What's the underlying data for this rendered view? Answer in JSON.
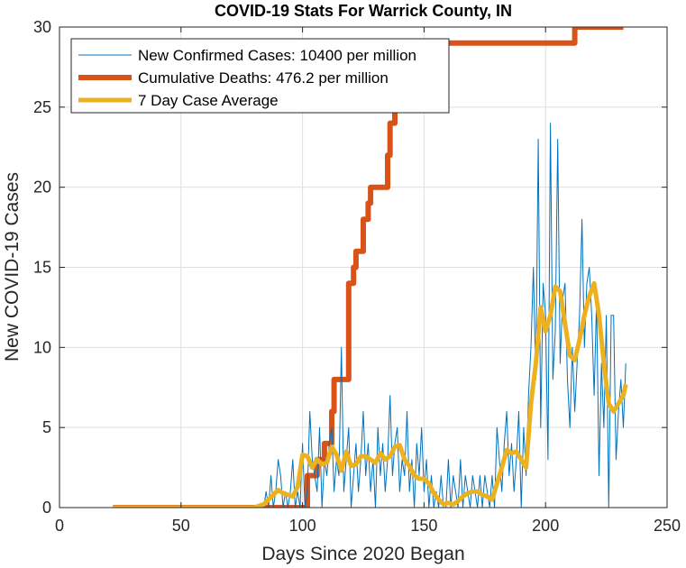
{
  "chart_data": {
    "type": "line",
    "title": "COVID-19 Stats For Warrick County, IN",
    "xlabel": "Days Since 2020 Began",
    "ylabel": "New COVID-19 Cases",
    "xlim": [
      0,
      250
    ],
    "ylim": [
      0,
      30
    ],
    "xticks": [
      0,
      50,
      100,
      150,
      200,
      250
    ],
    "yticks": [
      0,
      5,
      10,
      15,
      20,
      25,
      30
    ],
    "grid": true,
    "legend_position": "top-left",
    "series": [
      {
        "name": "New Confirmed Cases: 10400 per million",
        "color": "#0072BD",
        "style": "thin",
        "x": [
          22,
          40,
          60,
          80,
          84,
          85,
          86,
          87,
          88,
          89,
          90,
          91,
          92,
          93,
          94,
          95,
          96,
          97,
          98,
          99,
          100,
          101,
          102,
          103,
          104,
          105,
          106,
          107,
          108,
          109,
          110,
          111,
          112,
          113,
          114,
          115,
          116,
          117,
          118,
          119,
          120,
          121,
          122,
          123,
          124,
          125,
          126,
          127,
          128,
          129,
          130,
          131,
          132,
          133,
          134,
          135,
          136,
          137,
          138,
          139,
          140,
          141,
          142,
          143,
          144,
          145,
          146,
          147,
          148,
          149,
          150,
          151,
          152,
          153,
          154,
          155,
          156,
          157,
          158,
          159,
          160,
          161,
          162,
          163,
          164,
          165,
          166,
          167,
          168,
          169,
          170,
          171,
          172,
          173,
          174,
          175,
          176,
          177,
          178,
          179,
          180,
          181,
          182,
          183,
          184,
          185,
          186,
          187,
          188,
          189,
          190,
          191,
          192,
          193,
          194,
          195,
          196,
          197,
          198,
          199,
          200,
          201,
          202,
          203,
          204,
          205,
          206,
          207,
          208,
          209,
          210,
          211,
          212,
          213,
          214,
          215,
          216,
          217,
          218,
          219,
          220,
          221,
          222,
          223,
          224,
          225,
          226,
          227,
          228,
          229,
          230,
          231,
          232,
          233
        ],
        "y": [
          0,
          0,
          0,
          0,
          0,
          1,
          0,
          2,
          0,
          1,
          3,
          2,
          0,
          1,
          0,
          1,
          3,
          0,
          1,
          0,
          4,
          0,
          1,
          6,
          3,
          2,
          1,
          5,
          0,
          3,
          2,
          4,
          5,
          1,
          3,
          2,
          10,
          1,
          3,
          5,
          0,
          2,
          4,
          1,
          3,
          6,
          2,
          4,
          1,
          3,
          0,
          5,
          2,
          4,
          1,
          3,
          7,
          2,
          4,
          5,
          1,
          3,
          2,
          6,
          1,
          3,
          0,
          4,
          2,
          5,
          1,
          3,
          0,
          2,
          0,
          1,
          0,
          2,
          0,
          0,
          3,
          0,
          2,
          1,
          0,
          3,
          0,
          2,
          1,
          0,
          2,
          1,
          0,
          2,
          0,
          2,
          1,
          0,
          2,
          0,
          5,
          3,
          1,
          4,
          6,
          2,
          4,
          1,
          3,
          6,
          0,
          5,
          2,
          7,
          10,
          15,
          8,
          23,
          5,
          14,
          12,
          3,
          24,
          8,
          11,
          23,
          9,
          13,
          14,
          8,
          5,
          10,
          6,
          9,
          12,
          18,
          10,
          14,
          15,
          12,
          7,
          13,
          2,
          9,
          5,
          12,
          0,
          12,
          12,
          3,
          6,
          8,
          5,
          9
        ]
      },
      {
        "name": "Cumulative Deaths: 476.2 per million",
        "color": "#D95319",
        "style": "thick",
        "x": [
          22,
          40,
          60,
          80,
          90,
          100,
          101,
          102,
          103,
          104,
          105,
          106,
          107,
          108,
          109,
          110,
          111,
          112,
          113,
          114,
          115,
          116,
          117,
          118,
          119,
          120,
          121,
          122,
          123,
          124,
          125,
          126,
          127,
          128,
          129,
          130,
          131,
          132,
          133,
          134,
          135,
          136,
          137,
          138,
          139,
          140,
          142,
          145,
          150,
          155,
          160,
          200,
          211,
          212,
          220,
          232
        ],
        "y": [
          0,
          0,
          0,
          0,
          0,
          0,
          0,
          2,
          2,
          2,
          2,
          3,
          3,
          3,
          4,
          4,
          4,
          6,
          8,
          8,
          8,
          8,
          8,
          8,
          14,
          14,
          15,
          16,
          16,
          16,
          18,
          18,
          19,
          20,
          20,
          20,
          20,
          20,
          20,
          20,
          22,
          24,
          24,
          25,
          25,
          26,
          27,
          28,
          29,
          29,
          29,
          29,
          29,
          30,
          30,
          30
        ]
      },
      {
        "name": "7 Day Case Average",
        "color": "#EDB120",
        "style": "medium",
        "x": [
          22,
          40,
          60,
          80,
          82,
          84,
          86,
          88,
          90,
          92,
          94,
          96,
          98,
          100,
          102,
          104,
          106,
          108,
          110,
          112,
          114,
          116,
          118,
          120,
          122,
          124,
          126,
          128,
          130,
          132,
          134,
          136,
          138,
          140,
          142,
          144,
          146,
          148,
          150,
          152,
          154,
          156,
          158,
          160,
          162,
          164,
          166,
          168,
          170,
          172,
          174,
          176,
          178,
          180,
          182,
          184,
          186,
          188,
          190,
          192,
          194,
          196,
          198,
          200,
          202,
          204,
          206,
          208,
          210,
          212,
          214,
          216,
          218,
          220,
          222,
          224,
          226,
          228,
          230,
          232,
          233
        ],
        "y": [
          0,
          0,
          0,
          0,
          0.1,
          0.2,
          0.5,
          0.8,
          1.1,
          0.9,
          0.8,
          0.7,
          1.3,
          3.3,
          3.2,
          2.5,
          3.0,
          2.7,
          2.8,
          3.8,
          3.3,
          2.3,
          3.5,
          2.6,
          2.7,
          3.2,
          3.2,
          3.0,
          2.8,
          3.4,
          3.0,
          3.2,
          3.8,
          3.9,
          3.0,
          2.6,
          2.0,
          1.8,
          1.8,
          1.5,
          0.9,
          0.5,
          0.2,
          0.3,
          0.2,
          0.4,
          0.7,
          0.9,
          1.0,
          1.0,
          0.8,
          0.7,
          0.5,
          1.5,
          2.5,
          3.6,
          3.4,
          3.5,
          3.0,
          2.5,
          6.5,
          9.0,
          12.5,
          11.0,
          12.0,
          13.8,
          13.5,
          11.5,
          9.5,
          9.2,
          10.5,
          12.0,
          13.2,
          14.0,
          12.0,
          9.0,
          6.5,
          6.0,
          6.5,
          7.0,
          7.7
        ]
      }
    ]
  }
}
